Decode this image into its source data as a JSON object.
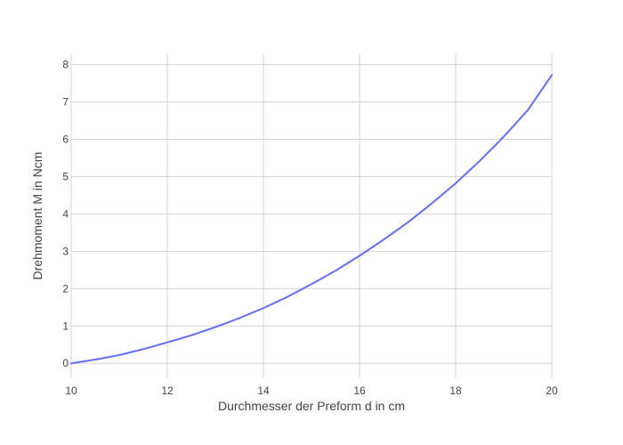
{
  "chart_data": {
    "type": "line",
    "title": "",
    "xlabel": "Durchmesser der Preform d in cm",
    "ylabel": "Drehmoment M in Ncm",
    "xlim": [
      10,
      20
    ],
    "ylim": [
      -0.4,
      8.3
    ],
    "x_ticks": [
      "10",
      "12",
      "14",
      "16",
      "18",
      "20"
    ],
    "y_ticks": [
      "0",
      "1",
      "2",
      "3",
      "4",
      "5",
      "6",
      "7",
      "8"
    ],
    "grid": true,
    "legend": "none",
    "series": [
      {
        "color": "#636efa",
        "x": [
          10,
          10.5,
          11,
          11.5,
          12,
          12.5,
          13,
          13.5,
          14,
          14.5,
          15,
          15.5,
          16,
          16.5,
          17,
          17.5,
          18,
          18.5,
          19,
          19.5,
          20
        ],
        "y": [
          0.0,
          0.1,
          0.22,
          0.38,
          0.56,
          0.75,
          0.97,
          1.21,
          1.48,
          1.78,
          2.12,
          2.48,
          2.88,
          3.31,
          3.77,
          4.28,
          4.82,
          5.42,
          6.07,
          6.78,
          7.72
        ]
      }
    ]
  }
}
